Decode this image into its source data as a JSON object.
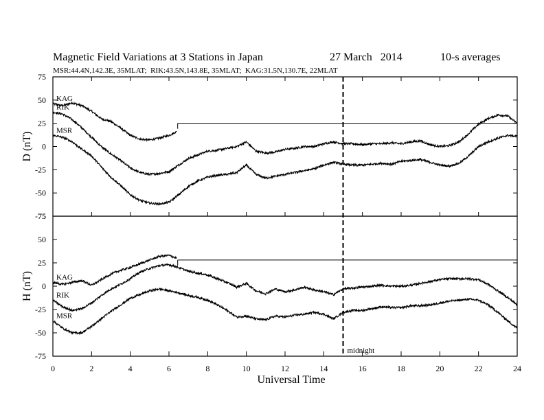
{
  "chart_data": {
    "type": "line",
    "title": "Magnetic Field Variations at 3 Stations in Japan",
    "date": "27 March   2014",
    "averaging": "10-s averages",
    "subtitle": "MSR:44.4N,142.3E, 35MLAT;  RIK:43.5N,143.8E, 35MLAT;  KAG:31.5N,130.7E, 22MLAT",
    "xlabel": "Universal Time",
    "xlim": [
      0,
      24
    ],
    "xticks": [
      0,
      2,
      4,
      6,
      8,
      10,
      12,
      14,
      16,
      18,
      20,
      22,
      24
    ],
    "marker": {
      "x": 15,
      "label": "midnight"
    },
    "panels": [
      {
        "ylabel": "D (nT)",
        "ylim": [
          -75,
          75
        ],
        "yticks": [
          75,
          50,
          25,
          0,
          -25,
          -50,
          -75
        ],
        "series": [
          {
            "name": "KAG",
            "x": [
              0,
              0.5,
              1,
              1.5,
              2,
              2.5,
              3,
              3.5,
              4,
              4.5,
              5,
              5.5,
              6,
              6.4
            ],
            "y": [
              46,
              44,
              47,
              44,
              38,
              30,
              27,
              20,
              12,
              8,
              7,
              9,
              12,
              16
            ]
          },
          {
            "name": "RIK",
            "x": [
              0,
              0.5,
              1,
              1.5,
              2,
              2.5,
              3,
              3.5,
              4,
              4.5,
              5,
              5.5,
              6,
              6.5,
              7,
              7.5,
              8,
              8.5,
              9,
              9.5,
              10,
              10.5,
              11,
              11.5,
              12,
              12.5,
              13,
              13.5,
              14,
              14.5,
              15,
              15.5,
              16,
              16.5,
              17,
              17.5,
              18,
              18.5,
              19,
              19.5,
              20,
              20.5,
              21,
              21.5,
              22,
              22.5,
              23,
              23.5,
              24
            ],
            "y": [
              37,
              35,
              29,
              20,
              10,
              0,
              -8,
              -15,
              -23,
              -28,
              -30,
              -29,
              -27,
              -20,
              -13,
              -9,
              -5,
              -4,
              -2,
              0,
              5,
              -5,
              -7,
              -6,
              -3,
              -2,
              0,
              0,
              3,
              5,
              3,
              3,
              2,
              3,
              3,
              4,
              3,
              5,
              6,
              2,
              0,
              1,
              5,
              14,
              24,
              30,
              34,
              33,
              25
            ]
          },
          {
            "name": "MSR",
            "x": [
              0,
              0.5,
              1,
              1.5,
              2,
              2.5,
              3,
              3.5,
              4,
              4.5,
              5,
              5.5,
              6,
              6.5,
              7,
              7.5,
              8,
              8.5,
              9,
              9.5,
              10,
              10.5,
              11,
              11.5,
              12,
              12.5,
              13,
              13.5,
              14,
              14.5,
              15,
              15.5,
              16,
              16.5,
              17,
              17.5,
              18,
              18.5,
              19,
              19.5,
              20,
              20.5,
              21,
              21.5,
              22,
              22.5,
              23,
              23.5,
              24
            ],
            "y": [
              12,
              10,
              5,
              -3,
              -10,
              -22,
              -33,
              -42,
              -52,
              -58,
              -61,
              -62,
              -60,
              -52,
              -43,
              -37,
              -33,
              -31,
              -30,
              -28,
              -20,
              -30,
              -34,
              -32,
              -30,
              -28,
              -26,
              -24,
              -20,
              -17,
              -19,
              -20,
              -20,
              -19,
              -18,
              -19,
              -16,
              -15,
              -14,
              -17,
              -20,
              -21,
              -18,
              -10,
              0,
              5,
              9,
              12,
              11
            ]
          }
        ],
        "flatline": {
          "from_x": 6.45,
          "to_x": 24,
          "y": 25
        }
      },
      {
        "ylabel": "H (nT)",
        "ylim": [
          -75,
          75
        ],
        "yticks": [
          75,
          50,
          25,
          0,
          -25,
          -50,
          -75
        ],
        "series": [
          {
            "name": "KAG",
            "x": [
              0,
              0.5,
              1,
              1.5,
              2,
              2.5,
              3,
              3.5,
              4,
              4.5,
              5,
              5.5,
              6,
              6.4
            ],
            "y": [
              4,
              2,
              4,
              6,
              1,
              7,
              13,
              17,
              20,
              24,
              28,
              32,
              33,
              30
            ]
          },
          {
            "name": "RIK",
            "x": [
              0,
              0.5,
              1,
              1.5,
              2,
              2.5,
              3,
              3.5,
              4,
              4.5,
              5,
              5.5,
              6,
              6.5,
              7,
              7.5,
              8,
              8.5,
              9,
              9.5,
              10,
              10.5,
              11,
              11.5,
              12,
              12.5,
              13,
              13.5,
              14,
              14.5,
              15,
              15.5,
              16,
              16.5,
              17,
              17.5,
              18,
              18.5,
              19,
              19.5,
              20,
              20.5,
              21,
              21.5,
              22,
              22.5,
              23,
              23.5,
              24
            ],
            "y": [
              -15,
              -22,
              -26,
              -24,
              -18,
              -10,
              -3,
              2,
              8,
              15,
              19,
              22,
              23,
              20,
              16,
              14,
              12,
              8,
              4,
              -1,
              3,
              -5,
              -8,
              -3,
              -6,
              -4,
              -1,
              -4,
              -6,
              -9,
              -3,
              -2,
              -1,
              0,
              1,
              0,
              0,
              1,
              3,
              5,
              7,
              8,
              8,
              8,
              7,
              2,
              -5,
              -12,
              -20
            ]
          },
          {
            "name": "MSR",
            "x": [
              0,
              0.5,
              1,
              1.5,
              2,
              2.5,
              3,
              3.5,
              4,
              4.5,
              5,
              5.5,
              6,
              6.5,
              7,
              7.5,
              8,
              8.5,
              9,
              9.5,
              10,
              10.5,
              11,
              11.5,
              12,
              12.5,
              13,
              13.5,
              14,
              14.5,
              15,
              15.5,
              16,
              16.5,
              17,
              17.5,
              18,
              18.5,
              19,
              19.5,
              20,
              20.5,
              21,
              21.5,
              22,
              22.5,
              23,
              23.5,
              24
            ],
            "y": [
              -37,
              -45,
              -50,
              -50,
              -43,
              -35,
              -27,
              -20,
              -13,
              -9,
              -5,
              -3,
              -5,
              -7,
              -10,
              -12,
              -15,
              -20,
              -26,
              -33,
              -32,
              -35,
              -36,
              -32,
              -33,
              -31,
              -30,
              -28,
              -30,
              -35,
              -28,
              -26,
              -26,
              -24,
              -22,
              -23,
              -23,
              -21,
              -21,
              -20,
              -18,
              -16,
              -15,
              -14,
              -15,
              -20,
              -28,
              -37,
              -45
            ]
          }
        ],
        "flatline": {
          "from_x": 6.45,
          "to_x": 24,
          "y": 28
        }
      }
    ]
  },
  "colors": {
    "line": "#000000",
    "background": "#ffffff"
  }
}
